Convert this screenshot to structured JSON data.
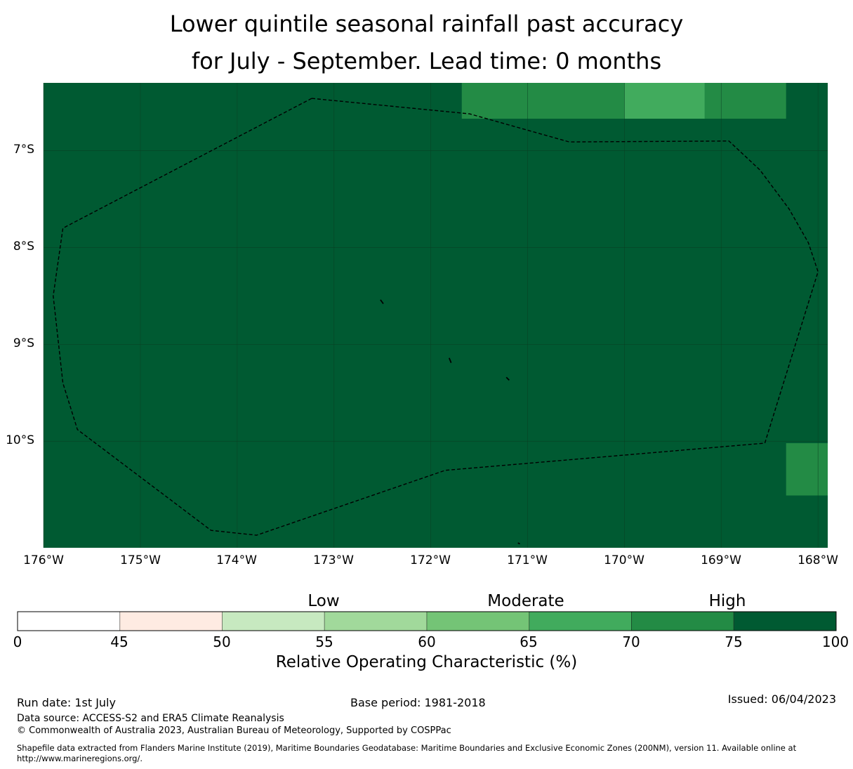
{
  "title": {
    "line1": "Lower quintile seasonal rainfall past accuracy",
    "line2": "for July - September. Lead time: 0 months"
  },
  "map": {
    "lon_labels": [
      "176°W",
      "175°W",
      "174°W",
      "173°W",
      "172°W",
      "171°W",
      "170°W",
      "169°W",
      "168°W"
    ],
    "lat_labels": [
      "7°S",
      "8°S",
      "9°S",
      "10°S"
    ],
    "lon_range": [
      -176,
      -167.9
    ],
    "lat_range": [
      -11.1,
      -6.3
    ],
    "background_value_class": "75-100",
    "cells": [
      {
        "lon": [
          -171.68,
          -170.0
        ],
        "lat": [
          -6.67,
          -6.3
        ],
        "class": "70-75"
      },
      {
        "lon": [
          -170.0,
          -169.17
        ],
        "lat": [
          -6.67,
          -6.3
        ],
        "class": "65-70"
      },
      {
        "lon": [
          -169.17,
          -168.33
        ],
        "lat": [
          -6.67,
          -6.3
        ],
        "class": "70-75"
      },
      {
        "lon": [
          -168.33,
          -167.9
        ],
        "lat": [
          -10.56,
          -10.02
        ],
        "class": "70-75"
      }
    ],
    "eez_boundary": [
      [
        -173.23,
        -6.46
      ],
      [
        -171.6,
        -6.62
      ],
      [
        -170.57,
        -6.91
      ],
      [
        -168.92,
        -6.9
      ],
      [
        -168.6,
        -7.2
      ],
      [
        -168.3,
        -7.6
      ],
      [
        -168.1,
        -7.95
      ],
      [
        -168.0,
        -8.25
      ],
      [
        -168.55,
        -10.02
      ],
      [
        -171.85,
        -10.3
      ],
      [
        -173.8,
        -10.97
      ],
      [
        -174.27,
        -10.92
      ],
      [
        -175.65,
        -9.88
      ],
      [
        -175.8,
        -9.4
      ],
      [
        -175.9,
        -8.5
      ],
      [
        -175.8,
        -7.8
      ],
      [
        -173.23,
        -6.46
      ]
    ],
    "islands": [
      [
        [
          -172.52,
          -8.54
        ],
        [
          -172.49,
          -8.58
        ]
      ],
      [
        [
          -171.81,
          -9.14
        ],
        [
          -171.79,
          -9.19
        ]
      ],
      [
        [
          -171.22,
          -9.34
        ],
        [
          -171.19,
          -9.37
        ]
      ],
      [
        [
          -171.1,
          -11.05
        ],
        [
          -171.08,
          -11.06
        ]
      ]
    ]
  },
  "colorbar": {
    "categories": [
      {
        "label": "Low",
        "at": 52.5
      },
      {
        "label": "Moderate",
        "at": 67.5
      },
      {
        "label": "High",
        "at": 87.5
      }
    ],
    "ticks": [
      "0",
      "45",
      "50",
      "55",
      "60",
      "65",
      "70",
      "75",
      "100"
    ],
    "colors": [
      "#ffffff",
      "#feebe2",
      "#c7e9c0",
      "#a1d99b",
      "#74c476",
      "#41ab5d",
      "#238b45",
      "#005a32"
    ],
    "label": "Relative Operating Characteristic (%)"
  },
  "footer": {
    "run_date": "Run date: 1st July",
    "base_period": "Base period: 1981-2018",
    "issued": "Issued: 06/04/2023",
    "data_source": "Data source: ACCESS-S2 and ERA5 Climate Reanalysis",
    "copyright": "© Commonwealth of Australia 2023, Australian Bureau of Meteorology, Supported by COSPPac",
    "shapefile_line1": "Shapefile data extracted from Flanders Marine Institute (2019), Maritime Boundaries Geodatabase: Maritime Boundaries and Exclusive Economic Zones (200NM), version 11. Available online at",
    "shapefile_line2": "http://www.marineregions.org/."
  },
  "colors": {
    "class_75_100": "#005a32",
    "class_70_75": "#238b45",
    "class_65_70": "#41ab5d",
    "gridline": "#0a3d22",
    "boundary": "#000000"
  }
}
